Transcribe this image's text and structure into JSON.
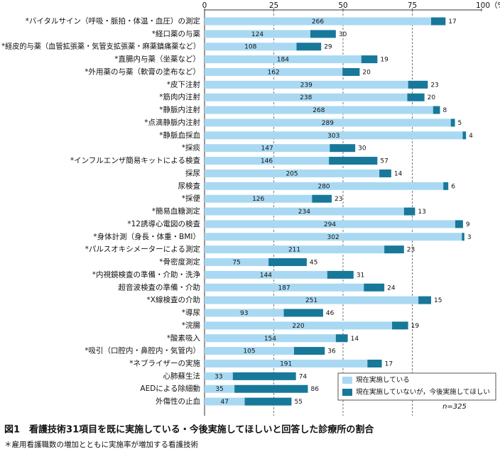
{
  "chart_data": {
    "type": "stacked-barh",
    "title": "図1　看護技術31項目を既に実施している・今後実施してほしいと回答した診療所の割合",
    "footnote": "＊雇用看護職数の増加とともに実施率が増加する看護技術",
    "note": "n=325",
    "categories": [
      "*バイタルサイン（呼吸・脈拍・体温・血圧）の測定",
      "*経口薬の与薬",
      "*経皮的与薬（血管拡張薬・気管支拡張薬・麻薬鎮痛薬など）",
      "*直腸内与薬（坐薬など）",
      "*外用薬の与薬（軟膏の塗布など）",
      "*皮下注射",
      "*筋肉内注射",
      "*静脈内注射",
      "*点滴静脈内注射",
      "*静脈血採血",
      "*採痰",
      "*インフルエンザ簡易キットによる検査",
      "採尿",
      "尿検査",
      "*採便",
      "*簡易血糖測定",
      "*12誘導心電図の検査",
      "*身体計測（身長・体重・BMI）",
      "*パルスオキシメーターによる測定",
      "*骨密度測定",
      "*内視鏡検査の準備・介助・洗浄",
      "超音波検査の準備・介助",
      "*X線検査の介助",
      "*導尿",
      "*浣腸",
      "*酸素吸入",
      "*吸引（口腔内・鼻腔内・気管内）",
      "*ネブライザーの実施",
      "心肺蘇生法",
      "AEDによる除細動",
      "外傷性の止血"
    ],
    "series": [
      {
        "name": "現在実施している",
        "color": "#a9d9f2",
        "values": [
          81.8,
          38.2,
          33.2,
          56.6,
          49.8,
          73.5,
          73.2,
          82.5,
          88.9,
          93.2,
          45.2,
          44.9,
          63.1,
          86.2,
          38.8,
          72.0,
          90.5,
          92.9,
          64.9,
          23.1,
          44.3,
          57.5,
          77.2,
          28.6,
          67.7,
          47.4,
          32.3,
          58.8,
          10.2,
          10.8,
          14.5
        ],
        "value_labels": [
          "266",
          "124",
          "108",
          "184",
          "162",
          "239",
          "238",
          "268",
          "289",
          "303",
          "147",
          "146",
          "205",
          "280",
          "126",
          "234",
          "294",
          "302",
          "211",
          "75",
          "144",
          "187",
          "251",
          "93",
          "220",
          "154",
          "105",
          "191",
          "33",
          "35",
          "47"
        ]
      },
      {
        "name": "現在実施していないが，今後実施してほしい",
        "color": "#17789a",
        "values": [
          5.2,
          9.2,
          8.9,
          5.8,
          6.2,
          7.1,
          6.2,
          2.5,
          1.5,
          1.2,
          9.2,
          17.5,
          4.3,
          1.8,
          7.1,
          4.0,
          2.8,
          0.9,
          7.1,
          13.8,
          9.5,
          7.4,
          4.6,
          14.2,
          5.8,
          4.3,
          11.1,
          5.2,
          22.8,
          26.5,
          16.9
        ],
        "value_labels": [
          "17",
          "30",
          "29",
          "19",
          "20",
          "23",
          "20",
          "8",
          "5",
          "4",
          "30",
          "57",
          "14",
          "6",
          "23",
          "13",
          "9",
          "3",
          "23",
          "45",
          "31",
          "24",
          "15",
          "46",
          "19",
          "14",
          "36",
          "17",
          "74",
          "86",
          "55"
        ]
      }
    ],
    "xlim": [
      0,
      100
    ],
    "xticks": [
      0,
      25,
      50,
      75,
      {
        "value": 100,
        "label": "100（%）"
      }
    ],
    "grid": true,
    "legend": "lower right"
  }
}
